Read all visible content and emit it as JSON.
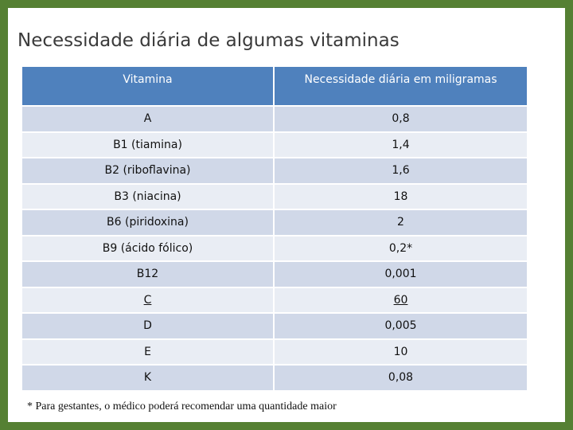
{
  "slide": {
    "title": "Necessidade diária de algumas vitaminas",
    "footnote": "* Para gestantes, o médico poderá recomendar uma quantidade maior"
  },
  "colors": {
    "background_green": "#558033",
    "header_blue": "#4f81bd",
    "row_odd": "#d0d8e8",
    "row_even": "#e9edf4"
  },
  "table": {
    "headers": [
      "Vitamina",
      "Necessidade diária em miligramas"
    ],
    "rows": [
      {
        "vitamin": "A",
        "amount": "0,8"
      },
      {
        "vitamin": "B1 (tiamina)",
        "amount": "1,4"
      },
      {
        "vitamin": "B2 (riboflavina)",
        "amount": "1,6"
      },
      {
        "vitamin": "B3 (niacina)",
        "amount": "18"
      },
      {
        "vitamin": "B6 (piridoxina)",
        "amount": "2"
      },
      {
        "vitamin": "B9 (ácido fólico)",
        "amount": "0,2*"
      },
      {
        "vitamin": "B12",
        "amount": "0,001"
      },
      {
        "vitamin": "C",
        "amount": "60"
      },
      {
        "vitamin": "D",
        "amount": "0,005"
      },
      {
        "vitamin": "E",
        "amount": "10"
      },
      {
        "vitamin": "K",
        "amount": "0,08"
      }
    ]
  }
}
